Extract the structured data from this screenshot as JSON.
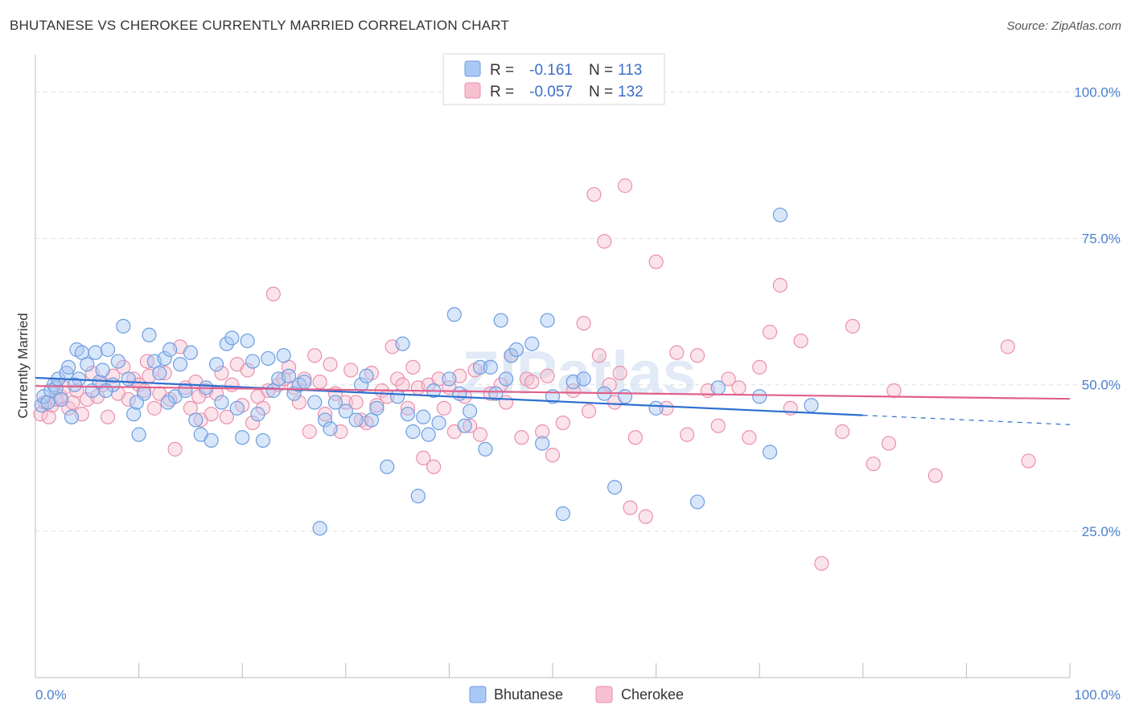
{
  "header": {
    "title": "BHUTANESE VS CHEROKEE CURRENTLY MARRIED CORRELATION CHART",
    "source": "Source: ZipAtlas.com"
  },
  "watermark": "ZIPatlas",
  "legend": {
    "r_label": "R =",
    "n_label": "N =",
    "rows": [
      {
        "r": "-0.161",
        "n": "113"
      },
      {
        "r": "-0.057",
        "n": "132"
      }
    ]
  },
  "colors": {
    "bhutanese_fill": "#a9c8f5",
    "bhutanese_stroke": "#6d9de0",
    "bhutanese_line": "#2d6fcf",
    "cherokee_fill": "#f7c0d0",
    "cherokee_stroke": "#eb90ad",
    "cherokee_line": "#e0608c",
    "grid": "#dddddd",
    "tick_label": "#4a7fd0"
  },
  "chart_data": {
    "type": "scatter",
    "title": "BHUTANESE VS CHEROKEE CURRENTLY MARRIED CORRELATION CHART",
    "xlabel": "",
    "ylabel": "Currently Married",
    "xlim": [
      0,
      100
    ],
    "ylim": [
      0,
      105
    ],
    "x_tick_labels": [
      "0.0%",
      "100.0%"
    ],
    "y_ticks": [
      25,
      50,
      75,
      100
    ],
    "y_tick_labels": [
      "25.0%",
      "50.0%",
      "75.0%",
      "100.0%"
    ],
    "grid": "horizontal dashed",
    "legend_position": "top-center",
    "series": [
      {
        "name": "Bhutanese",
        "r": -0.161,
        "n": 113,
        "trend": {
          "x0": 0,
          "y0": 51.2,
          "x1": 80,
          "y1": 44.8,
          "dashed_to_x": 100,
          "dashed_to_y": 43.2
        },
        "points": [
          [
            0.6,
            46.5
          ],
          [
            0.8,
            48
          ],
          [
            1.2,
            47
          ],
          [
            1.5,
            49
          ],
          [
            1.8,
            50
          ],
          [
            2.0,
            49.5
          ],
          [
            2.2,
            51
          ],
          [
            2.5,
            47.5
          ],
          [
            3.0,
            52
          ],
          [
            3.2,
            53
          ],
          [
            3.5,
            44.5
          ],
          [
            4.0,
            56
          ],
          [
            4.2,
            51
          ],
          [
            4.5,
            55.5
          ],
          [
            5.0,
            53.5
          ],
          [
            5.5,
            49
          ],
          [
            5.8,
            55.5
          ],
          [
            6.2,
            50.5
          ],
          [
            6.5,
            52.5
          ],
          [
            7.0,
            56
          ],
          [
            7.5,
            50
          ],
          [
            8.0,
            54
          ],
          [
            8.5,
            60
          ],
          [
            9.0,
            51
          ],
          [
            9.5,
            45
          ],
          [
            10.0,
            41.5
          ],
          [
            10.5,
            48.5
          ],
          [
            11.0,
            58.5
          ],
          [
            11.5,
            54
          ],
          [
            12.0,
            52
          ],
          [
            12.5,
            54.5
          ],
          [
            13.0,
            56
          ],
          [
            13.5,
            48
          ],
          [
            14.0,
            53.5
          ],
          [
            14.5,
            49
          ],
          [
            15.0,
            55.5
          ],
          [
            15.5,
            44
          ],
          [
            16.0,
            41.5
          ],
          [
            16.5,
            49.5
          ],
          [
            17.0,
            40.5
          ],
          [
            17.5,
            53.5
          ],
          [
            18.0,
            47
          ],
          [
            18.5,
            57
          ],
          [
            19.0,
            58
          ],
          [
            19.5,
            46
          ],
          [
            20.0,
            41
          ],
          [
            20.5,
            57.5
          ],
          [
            21.0,
            54
          ],
          [
            21.5,
            45
          ],
          [
            22.0,
            40.5
          ],
          [
            22.5,
            54.5
          ],
          [
            23.0,
            49
          ],
          [
            23.5,
            51
          ],
          [
            24.0,
            55
          ],
          [
            24.5,
            51.5
          ],
          [
            25.0,
            48.5
          ],
          [
            25.5,
            50
          ],
          [
            26.0,
            50.5
          ],
          [
            27.0,
            47
          ],
          [
            27.5,
            25.5
          ],
          [
            28.0,
            44
          ],
          [
            28.5,
            42.5
          ],
          [
            29.0,
            47
          ],
          [
            30.0,
            45.5
          ],
          [
            31.0,
            44
          ],
          [
            31.5,
            50
          ],
          [
            32.0,
            51.5
          ],
          [
            32.5,
            44
          ],
          [
            33.0,
            46
          ],
          [
            34.0,
            36
          ],
          [
            35.0,
            48
          ],
          [
            35.5,
            57
          ],
          [
            36.0,
            45
          ],
          [
            36.5,
            42
          ],
          [
            37.0,
            31
          ],
          [
            37.5,
            44.5
          ],
          [
            38.0,
            41.5
          ],
          [
            38.5,
            49
          ],
          [
            39.0,
            43.5
          ],
          [
            40.0,
            51
          ],
          [
            40.5,
            62
          ],
          [
            41.0,
            48.5
          ],
          [
            41.5,
            43
          ],
          [
            42.0,
            45.5
          ],
          [
            43.0,
            53
          ],
          [
            43.5,
            39
          ],
          [
            44.0,
            53
          ],
          [
            44.5,
            48.5
          ],
          [
            45.0,
            61
          ],
          [
            45.5,
            51
          ],
          [
            46.0,
            55
          ],
          [
            46.5,
            56
          ],
          [
            48.0,
            57
          ],
          [
            49.0,
            40
          ],
          [
            49.5,
            61
          ],
          [
            50.0,
            48
          ],
          [
            51.0,
            28
          ],
          [
            52.0,
            50.5
          ],
          [
            53.0,
            51
          ],
          [
            55.0,
            48.5
          ],
          [
            56.0,
            32.5
          ],
          [
            57.0,
            48
          ],
          [
            60.0,
            46
          ],
          [
            64.0,
            30
          ],
          [
            66.0,
            49.5
          ],
          [
            70.0,
            48
          ],
          [
            71.0,
            38.5
          ],
          [
            72.0,
            79
          ],
          [
            75.0,
            46.5
          ],
          [
            3.8,
            50
          ],
          [
            6.8,
            49
          ],
          [
            12.8,
            47
          ],
          [
            9.8,
            47
          ]
        ]
      },
      {
        "name": "Cherokee",
        "r": -0.057,
        "n": 132,
        "trend": {
          "x0": 0,
          "y0": 49.8,
          "x1": 100,
          "y1": 47.6
        },
        "points": [
          [
            0.5,
            45
          ],
          [
            0.9,
            47
          ],
          [
            1.3,
            44.5
          ],
          [
            1.6,
            46.5
          ],
          [
            2.0,
            47.5
          ],
          [
            2.4,
            48
          ],
          [
            2.8,
            49.5
          ],
          [
            3.2,
            46
          ],
          [
            3.6,
            47
          ],
          [
            4.0,
            49
          ],
          [
            4.5,
            45
          ],
          [
            5.0,
            47.5
          ],
          [
            5.5,
            52
          ],
          [
            6.0,
            48
          ],
          [
            6.5,
            50
          ],
          [
            7.0,
            44.5
          ],
          [
            7.5,
            51.5
          ],
          [
            8.0,
            48.5
          ],
          [
            8.5,
            53
          ],
          [
            9.0,
            47.5
          ],
          [
            9.5,
            51
          ],
          [
            10.0,
            50
          ],
          [
            10.5,
            49
          ],
          [
            11.0,
            51.5
          ],
          [
            11.5,
            46
          ],
          [
            12.0,
            48.5
          ],
          [
            12.5,
            52
          ],
          [
            13.0,
            47.5
          ],
          [
            13.5,
            39
          ],
          [
            14.0,
            56.5
          ],
          [
            14.5,
            49.5
          ],
          [
            15.0,
            46
          ],
          [
            15.5,
            50.5
          ],
          [
            16.0,
            44
          ],
          [
            16.5,
            49
          ],
          [
            17.0,
            45
          ],
          [
            17.5,
            48.5
          ],
          [
            18.0,
            52
          ],
          [
            18.5,
            44.5
          ],
          [
            19.0,
            50
          ],
          [
            19.5,
            53.5
          ],
          [
            20.0,
            46.5
          ],
          [
            20.5,
            52.5
          ],
          [
            21.0,
            43.5
          ],
          [
            21.5,
            48
          ],
          [
            22.0,
            46
          ],
          [
            22.5,
            49
          ],
          [
            23.0,
            65.5
          ],
          [
            23.5,
            50
          ],
          [
            24.0,
            51
          ],
          [
            24.5,
            53
          ],
          [
            25.0,
            49.5
          ],
          [
            25.5,
            47
          ],
          [
            26.0,
            51
          ],
          [
            26.5,
            42
          ],
          [
            27.0,
            55
          ],
          [
            27.5,
            50.5
          ],
          [
            28.0,
            45
          ],
          [
            28.5,
            53.5
          ],
          [
            29.0,
            48.5
          ],
          [
            29.5,
            42
          ],
          [
            30.0,
            47
          ],
          [
            30.5,
            52.5
          ],
          [
            31.0,
            47
          ],
          [
            31.5,
            44
          ],
          [
            32.0,
            43.5
          ],
          [
            32.5,
            52
          ],
          [
            33.0,
            46.5
          ],
          [
            33.5,
            49
          ],
          [
            34.0,
            48
          ],
          [
            34.5,
            56.5
          ],
          [
            35.0,
            51
          ],
          [
            35.5,
            50
          ],
          [
            36.0,
            46
          ],
          [
            36.5,
            53
          ],
          [
            37.0,
            49.5
          ],
          [
            37.5,
            37.5
          ],
          [
            38.0,
            50
          ],
          [
            38.5,
            36
          ],
          [
            39.0,
            51
          ],
          [
            39.5,
            46
          ],
          [
            40.0,
            49.5
          ],
          [
            40.5,
            42
          ],
          [
            41.0,
            51.5
          ],
          [
            41.5,
            48
          ],
          [
            42.0,
            43
          ],
          [
            42.5,
            52.5
          ],
          [
            43.0,
            41.5
          ],
          [
            44.0,
            48.5
          ],
          [
            45.0,
            50
          ],
          [
            45.5,
            47
          ],
          [
            46.0,
            55
          ],
          [
            47.0,
            41
          ],
          [
            47.5,
            51
          ],
          [
            48.0,
            50.5
          ],
          [
            49.0,
            42
          ],
          [
            49.5,
            51.5
          ],
          [
            50.0,
            38
          ],
          [
            51.0,
            43.5
          ],
          [
            52.0,
            49
          ],
          [
            53.0,
            60.5
          ],
          [
            53.5,
            45.5
          ],
          [
            54.0,
            82.5
          ],
          [
            54.5,
            55
          ],
          [
            55.0,
            74.5
          ],
          [
            55.5,
            50
          ],
          [
            56.0,
            47
          ],
          [
            56.5,
            52
          ],
          [
            57.0,
            84
          ],
          [
            57.5,
            29
          ],
          [
            58.0,
            41
          ],
          [
            59.0,
            27.5
          ],
          [
            60.0,
            71
          ],
          [
            61.0,
            46
          ],
          [
            62.0,
            55.5
          ],
          [
            63.0,
            41.5
          ],
          [
            64.0,
            55
          ],
          [
            65.0,
            49
          ],
          [
            66.0,
            43
          ],
          [
            67.0,
            51
          ],
          [
            68.0,
            49.5
          ],
          [
            69.0,
            41
          ],
          [
            70.0,
            53
          ],
          [
            71.0,
            59
          ],
          [
            72.0,
            67
          ],
          [
            73.0,
            46
          ],
          [
            74.0,
            57.5
          ],
          [
            76.0,
            19.5
          ],
          [
            78.0,
            42
          ],
          [
            79.0,
            60
          ],
          [
            81.0,
            36.5
          ],
          [
            82.5,
            40
          ],
          [
            83.0,
            49
          ],
          [
            87.0,
            34.5
          ],
          [
            94.0,
            56.5
          ],
          [
            96.0,
            37
          ],
          [
            10.8,
            54
          ],
          [
            15.8,
            48
          ]
        ]
      }
    ]
  },
  "bottom_legend": [
    "Bhutanese",
    "Cherokee"
  ]
}
